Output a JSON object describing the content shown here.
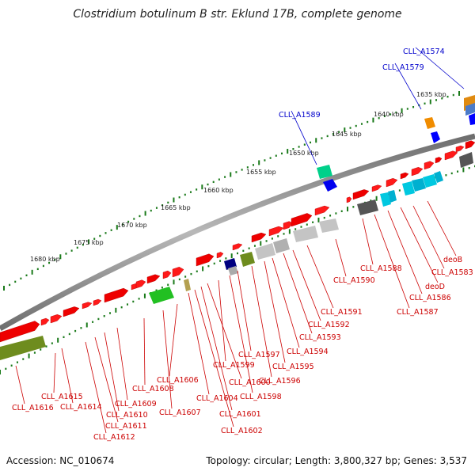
{
  "title": "Clostridium botulinum B str. Eklund 17B, complete genome",
  "footer": {
    "accession": "Accession: NC_010674",
    "summary": "Topology: circular; Length: 3,800,327 bp; Genes: 3,537"
  },
  "colors": {
    "backbone": "#8a8a8a",
    "tick": "#1a7a1a",
    "label_red": "#cc0000",
    "label_blue": "#0000cc"
  },
  "kbp_ticks": [
    {
      "label": "1635 kbp"
    },
    {
      "label": "1640 kbp"
    },
    {
      "label": "1645 kbp"
    },
    {
      "label": "1650 kbp"
    },
    {
      "label": "1655 kbp"
    },
    {
      "label": "1660 kbp"
    },
    {
      "label": "1665 kbp"
    },
    {
      "label": "1670 kbp"
    },
    {
      "label": "1675 kbp"
    },
    {
      "label": "1680 kbp"
    }
  ],
  "gene_labels_blue": [
    {
      "label": "CLL_A1574"
    },
    {
      "label": "CLL_A1579"
    },
    {
      "label": "CLL_A1589"
    }
  ],
  "gene_labels_red": [
    {
      "label": "deoB"
    },
    {
      "label": "CLL_A1583"
    },
    {
      "label": "deoD"
    },
    {
      "label": "CLL_A1586"
    },
    {
      "label": "CLL_A1587"
    },
    {
      "label": "CLL_A1588"
    },
    {
      "label": "CLL_A1590"
    },
    {
      "label": "CLL_A1591"
    },
    {
      "label": "CLL_A1592"
    },
    {
      "label": "CLL_A1593"
    },
    {
      "label": "CLL_A1594"
    },
    {
      "label": "CLL_A1595"
    },
    {
      "label": "CLL_A1596"
    },
    {
      "label": "CLL_A1597"
    },
    {
      "label": "CLL_A1598"
    },
    {
      "label": "CLL_A1599"
    },
    {
      "label": "CLL_A1600"
    },
    {
      "label": "CLL_A1601"
    },
    {
      "label": "CLL_A1602"
    },
    {
      "label": "CLL_A1604"
    },
    {
      "label": "CLL_A1606"
    },
    {
      "label": "CLL_A1607"
    },
    {
      "label": "CLL_A1608"
    },
    {
      "label": "CLL_A1609"
    },
    {
      "label": "CLL_A1610"
    },
    {
      "label": "CLL_A1611"
    },
    {
      "label": "CLL_A1612"
    },
    {
      "label": "CLL_A1614"
    },
    {
      "label": "CLL_A1615"
    },
    {
      "label": "CLL_A1616"
    }
  ]
}
